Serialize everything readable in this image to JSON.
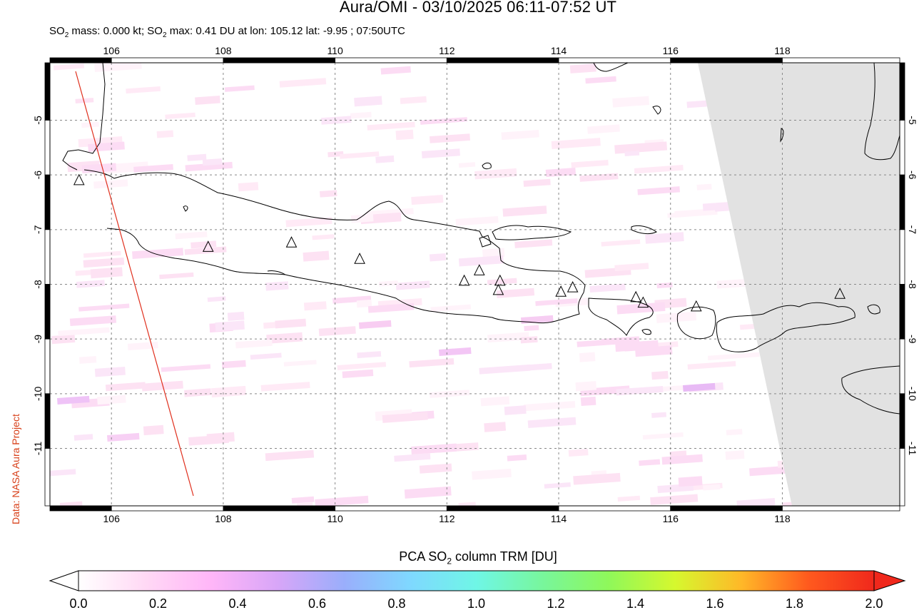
{
  "title": "Aura/OMI - 03/10/2025 06:11-07:52 UT",
  "subtitle": {
    "part1": "SO",
    "sub1": "2",
    "part2": " mass: 0.000 kt; SO",
    "sub2": "2",
    "part3": " max: 0.41 DU at lon: 105.12 lat: -9.95 ; 07:50UTC"
  },
  "credit": "Data: NASA Aura Project",
  "map": {
    "lon_range": [
      104.9,
      120.1
    ],
    "lat_range": [
      -12.05,
      -3.95
    ],
    "lon_ticks": [
      106,
      108,
      110,
      112,
      114,
      116,
      118
    ],
    "lat_ticks": [
      -5,
      -6,
      -7,
      -8,
      -9,
      -10,
      -11
    ],
    "lon_tick_labels": [
      "106",
      "108",
      "110",
      "112",
      "114",
      "116",
      "118"
    ],
    "lat_tick_labels": [
      "-5",
      "-6",
      "-7",
      "-8",
      "-9",
      "-10",
      "-11"
    ],
    "grid": true,
    "no_data_color": "#e2e2e2",
    "orbit_track_color": "#e0301e",
    "coast_color": "#000000",
    "volcano_icon": "triangle-outline",
    "volcanoes": [
      [
        105.42,
        -6.1
      ],
      [
        107.73,
        -7.32
      ],
      [
        109.22,
        -7.24
      ],
      [
        110.44,
        -7.54
      ],
      [
        112.31,
        -7.94
      ],
      [
        112.58,
        -7.75
      ],
      [
        112.95,
        -7.94
      ],
      [
        112.92,
        -8.11
      ],
      [
        114.04,
        -8.14
      ],
      [
        114.25,
        -8.06
      ],
      [
        115.38,
        -8.24
      ],
      [
        115.51,
        -8.34
      ],
      [
        116.46,
        -8.41
      ],
      [
        119.03,
        -8.18
      ]
    ]
  },
  "colorbar": {
    "title_part1": "PCA SO",
    "title_sub": "2",
    "title_part2": " column TRM [DU]",
    "min": 0.0,
    "max": 2.0,
    "tick_values": [
      0.0,
      0.2,
      0.4,
      0.6,
      0.8,
      1.0,
      1.2,
      1.4,
      1.6,
      1.8,
      2.0
    ],
    "tick_labels": [
      "0.0",
      "0.2",
      "0.4",
      "0.6",
      "0.8",
      "1.0",
      "1.2",
      "1.4",
      "1.6",
      "1.8",
      "2.0"
    ],
    "colors": [
      "#ffffff",
      "#ffd9f5",
      "#ffb6f8",
      "#d8a6f8",
      "#9aaefb",
      "#7fd8ff",
      "#6ff6e6",
      "#78f69c",
      "#8ff85a",
      "#d6f82e",
      "#ffb828",
      "#ff5a1e",
      "#f0281c"
    ]
  }
}
